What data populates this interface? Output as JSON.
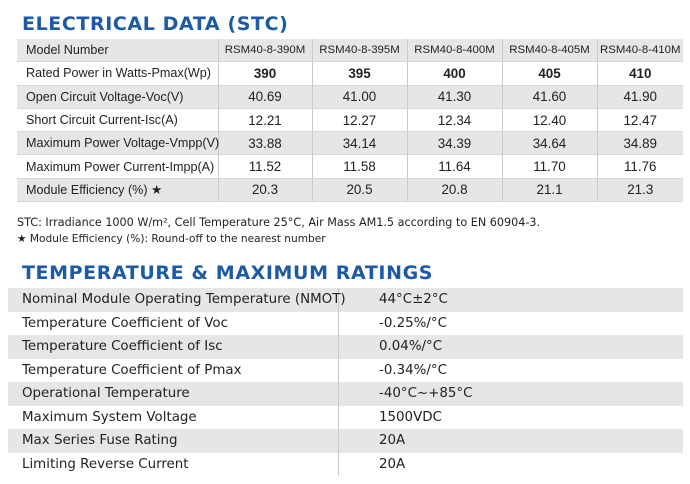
{
  "electrical": {
    "title": "ELECTRICAL DATA (STC)",
    "model_label": "Model Number",
    "models": [
      "RSM40-8-390M",
      "RSM40-8-395M",
      "RSM40-8-400M",
      "RSM40-8-405M",
      "RSM40-8-410M"
    ],
    "rows": [
      {
        "label": "Rated Power in Watts-Pmax(Wp)",
        "values": [
          "390",
          "395",
          "400",
          "405",
          "410"
        ]
      },
      {
        "label": "Open Circuit Voltage-Voc(V)",
        "values": [
          "40.69",
          "41.00",
          "41.30",
          "41.60",
          "41.90"
        ]
      },
      {
        "label": "Short Circuit Current-Isc(A)",
        "values": [
          "12.21",
          "12.27",
          "12.34",
          "12.40",
          "12.47"
        ]
      },
      {
        "label": "Maximum Power Voltage-Vmpp(V)",
        "values": [
          "33.88",
          "34.14",
          "34.39",
          "34.64",
          "34.89"
        ]
      },
      {
        "label": "Maximum Power Current-Impp(A)",
        "values": [
          "11.52",
          "11.58",
          "11.64",
          "11.70",
          "11.76"
        ]
      },
      {
        "label": "Module Efficiency (%)  ★",
        "values": [
          "20.3",
          "20.5",
          "20.8",
          "21.1",
          "21.3"
        ]
      }
    ],
    "note_stc": "STC: Irradiance 1000 W/m², Cell Temperature 25°C, Air Mass AM1.5 according to EN 60904-3.",
    "note_efficiency": "★ Module Efficiency (%): Round-off to the nearest number"
  },
  "temperature": {
    "title": "TEMPERATURE & MAXIMUM RATINGS",
    "rows": [
      {
        "label": "Nominal Module Operating Temperature (NMOT)",
        "value": "44°C±2°C"
      },
      {
        "label": "Temperature Coefficient of Voc",
        "value": "-0.25%/°C"
      },
      {
        "label": "Temperature Coefficient of Isc",
        "value": "0.04%/°C"
      },
      {
        "label": "Temperature Coefficient of Pmax",
        "value": "-0.34%/°C"
      },
      {
        "label": "Operational Temperature",
        "value": "-40°C~+85°C"
      },
      {
        "label": "Maximum System Voltage",
        "value": "1500VDC"
      },
      {
        "label": "Max Series Fuse Rating",
        "value": "20A"
      },
      {
        "label": "Limiting Reverse Current",
        "value": "20A"
      }
    ]
  }
}
